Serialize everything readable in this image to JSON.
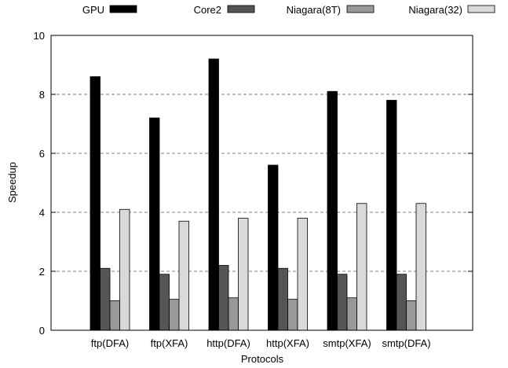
{
  "chart_data": {
    "type": "bar",
    "xlabel": "Protocols",
    "ylabel": "Speedup",
    "ylim": [
      0,
      10
    ],
    "yticks": [
      0,
      2,
      4,
      6,
      8,
      10
    ],
    "grid": true,
    "legend_position": "top",
    "categories": [
      "ftp(DFA)",
      "ftp(XFA)",
      "http(DFA)",
      "http(XFA)",
      "smtp(XFA)",
      "smtp(DFA)"
    ],
    "series": [
      {
        "name": "GPU",
        "color": "#000000",
        "values": [
          8.6,
          7.2,
          9.2,
          5.6,
          8.1,
          7.8
        ]
      },
      {
        "name": "Core2",
        "color": "#555555",
        "values": [
          2.1,
          1.9,
          2.2,
          2.1,
          1.9,
          1.9
        ]
      },
      {
        "name": "Niagara(8T)",
        "color": "#999999",
        "values": [
          1.0,
          1.05,
          1.1,
          1.05,
          1.1,
          1.0
        ]
      },
      {
        "name": "Niagara(32)",
        "color": "#d9d9d9",
        "values": [
          4.1,
          3.7,
          3.8,
          3.8,
          4.3,
          4.3
        ]
      }
    ]
  }
}
